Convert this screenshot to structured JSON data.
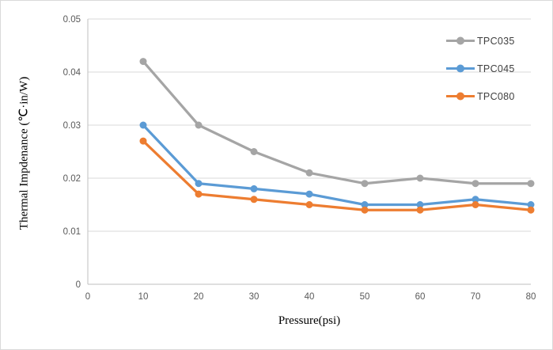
{
  "frame": {
    "border_color": "#d9d9d9",
    "background_color": "#ffffff"
  },
  "chart_data": {
    "type": "line",
    "title": "",
    "xlabel": "Pressure(psi)",
    "ylabel": "Thermal Impdenance (℃·in/W)",
    "x": [
      10,
      20,
      30,
      40,
      50,
      60,
      70,
      80
    ],
    "xlim": [
      0,
      80
    ],
    "ylim": [
      0,
      0.05
    ],
    "x_tick_values": [
      0,
      10,
      20,
      30,
      40,
      50,
      60,
      70,
      80
    ],
    "x_tick_labels": [
      "0",
      "10",
      "20",
      "30",
      "40",
      "50",
      "60",
      "70",
      "80"
    ],
    "y_tick_values": [
      0,
      0.01,
      0.02,
      0.03,
      0.04,
      0.05
    ],
    "y_tick_labels": [
      "0",
      "0.01",
      "0.02",
      "0.03",
      "0.04",
      "0.05"
    ],
    "grid": true,
    "legend_position": "inside-top-right",
    "series": [
      {
        "name": "TPC035",
        "color": "#a5a5a5",
        "values": [
          0.042,
          0.03,
          0.025,
          0.021,
          0.019,
          0.02,
          0.019,
          0.019
        ]
      },
      {
        "name": "TPC045",
        "color": "#5b9bd5",
        "values": [
          0.03,
          0.019,
          0.018,
          0.017,
          0.015,
          0.015,
          0.016,
          0.015
        ]
      },
      {
        "name": "TPC080",
        "color": "#ed7d31",
        "values": [
          0.027,
          0.017,
          0.016,
          0.015,
          0.014,
          0.014,
          0.015,
          0.014
        ]
      }
    ],
    "styles": {
      "gridline_color": "#d9d9d9",
      "axis_line_color": "#bfbfbf",
      "tick_label_color": "#595959",
      "legend_text_color": "#404040",
      "marker_shape": "circle"
    }
  }
}
